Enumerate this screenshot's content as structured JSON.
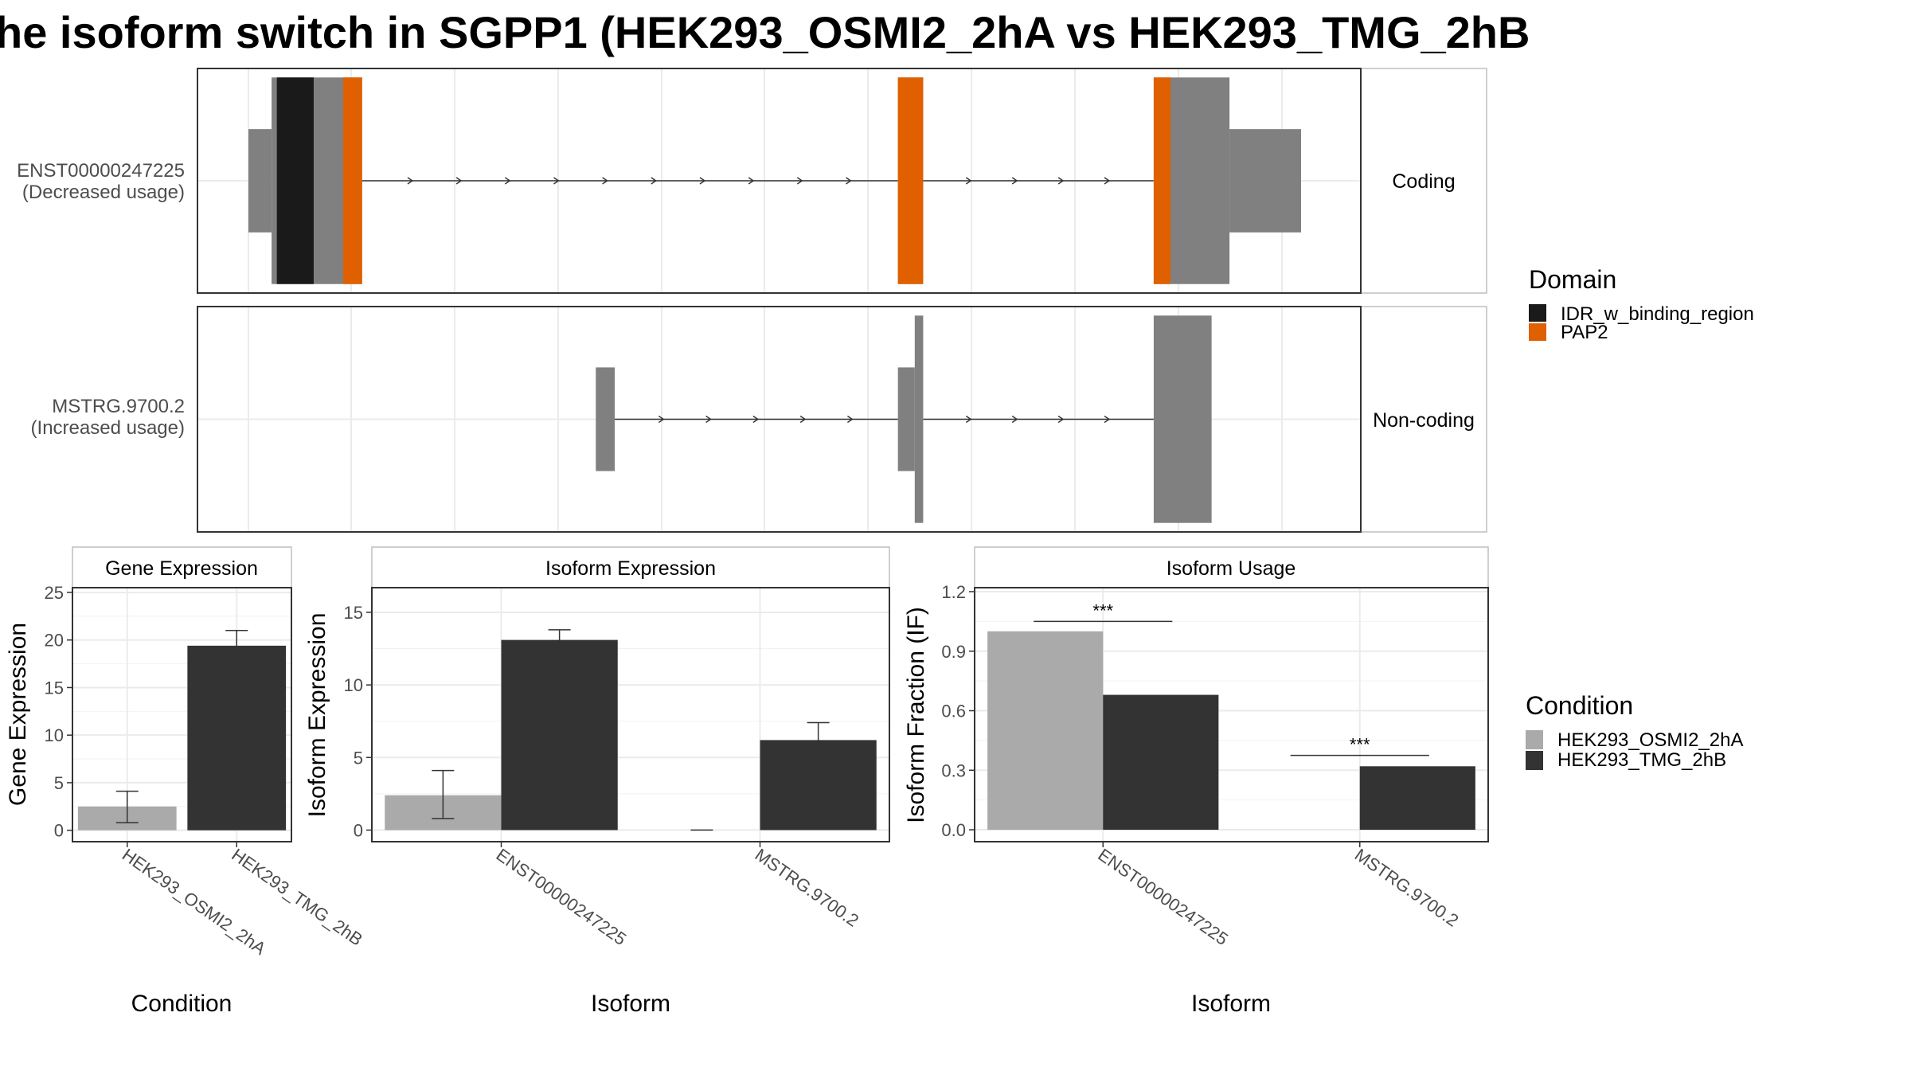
{
  "chart_data": [
    {
      "type": "gene-structure",
      "title": "he isoform switch in SGPP1 (HEK293_OSMI2_2hA vs HEK293_TMG_2hB",
      "legend": {
        "title": "Domain",
        "entries": [
          {
            "label": "IDR_w_binding_region",
            "color": "#1a1a1a"
          },
          {
            "label": "PAP2",
            "color": "#e06000"
          }
        ]
      },
      "isoforms": [
        {
          "id": "ENST00000247225",
          "usage_label": "(Decreased usage)",
          "class": "Coding",
          "exons": [
            {
              "start": 0.0,
              "end": 0.022,
              "kind": "utr"
            },
            {
              "start": 0.022,
              "end": 0.108,
              "kind": "cds"
            },
            {
              "start": 0.617,
              "end": 0.641,
              "kind": "cds"
            },
            {
              "start": 0.86,
              "end": 0.932,
              "kind": "cds"
            },
            {
              "start": 0.932,
              "end": 1.0,
              "kind": "utr"
            }
          ],
          "domains": [
            {
              "name": "IDR_w_binding_region",
              "start": 0.027,
              "end": 0.062
            },
            {
              "name": "PAP2",
              "start": 0.09,
              "end": 0.108
            },
            {
              "name": "PAP2",
              "start": 0.617,
              "end": 0.641
            },
            {
              "name": "PAP2",
              "start": 0.86,
              "end": 0.876
            }
          ]
        },
        {
          "id": "MSTRG.9700.2",
          "usage_label": "(Increased usage)",
          "class": "Non-coding",
          "exons": [
            {
              "start": 0.33,
              "end": 0.348,
              "kind": "utr"
            },
            {
              "start": 0.617,
              "end": 0.633,
              "kind": "utr"
            },
            {
              "start": 0.633,
              "end": 0.641,
              "kind": "tall"
            },
            {
              "start": 0.86,
              "end": 0.915,
              "kind": "tall"
            }
          ],
          "domains": []
        }
      ]
    },
    {
      "type": "bar",
      "panel": "Gene Expression",
      "categories": [
        "HEK293_OSMI2_2hA",
        "HEK293_TMG_2hB"
      ],
      "values": [
        2.5,
        19.4
      ],
      "errors": [
        [
          0.8,
          4.1
        ],
        [
          17.8,
          21.0
        ]
      ],
      "colors": [
        "#aaaaaa",
        "#333333"
      ],
      "xlabel": "Condition",
      "ylabel": "Gene Expression",
      "ylim": [
        -1.2,
        25.5
      ],
      "yticks": [
        0,
        5,
        10,
        15,
        20,
        25
      ]
    },
    {
      "type": "bar",
      "panel": "Isoform Expression",
      "categories": [
        "ENST00000247225",
        "MSTRG.9700.2"
      ],
      "series": [
        {
          "name": "HEK293_OSMI2_2hA",
          "values": [
            2.4,
            0.0
          ],
          "errors": [
            [
              0.8,
              4.1
            ],
            [
              0.0,
              0.0
            ]
          ]
        },
        {
          "name": "HEK293_TMG_2hB",
          "values": [
            13.1,
            6.2
          ],
          "errors": [
            [
              12.4,
              13.8
            ],
            [
              5.1,
              7.4
            ]
          ]
        }
      ],
      "xlabel": "Isoform",
      "ylabel": "Isoform Expression",
      "ylim": [
        -0.8,
        16.7
      ],
      "yticks": [
        0,
        5,
        10,
        15
      ]
    },
    {
      "type": "bar",
      "panel": "Isoform Usage",
      "categories": [
        "ENST00000247225",
        "MSTRG.9700.2"
      ],
      "series": [
        {
          "name": "HEK293_OSMI2_2hA",
          "values": [
            1.0,
            0.0
          ]
        },
        {
          "name": "HEK293_TMG_2hB",
          "values": [
            0.68,
            0.32
          ]
        }
      ],
      "significance": [
        {
          "category": "ENST00000247225",
          "label": "***",
          "y": 1.05
        },
        {
          "category": "MSTRG.9700.2",
          "label": "***",
          "y": 0.375
        }
      ],
      "xlabel": "Isoform",
      "ylabel": "Isoform Fraction (IF)",
      "ylim": [
        -0.06,
        1.22
      ],
      "yticks": [
        0.0,
        0.3,
        0.6,
        0.9,
        1.2
      ],
      "ytick_labels": [
        "0.0",
        "0.3",
        "0.6",
        "0.9",
        "1.2"
      ]
    }
  ],
  "condition_legend": {
    "title": "Condition",
    "entries": [
      {
        "label": "HEK293_OSMI2_2hA",
        "color": "#aaaaaa"
      },
      {
        "label": "HEK293_TMG_2hB",
        "color": "#333333"
      }
    ]
  }
}
